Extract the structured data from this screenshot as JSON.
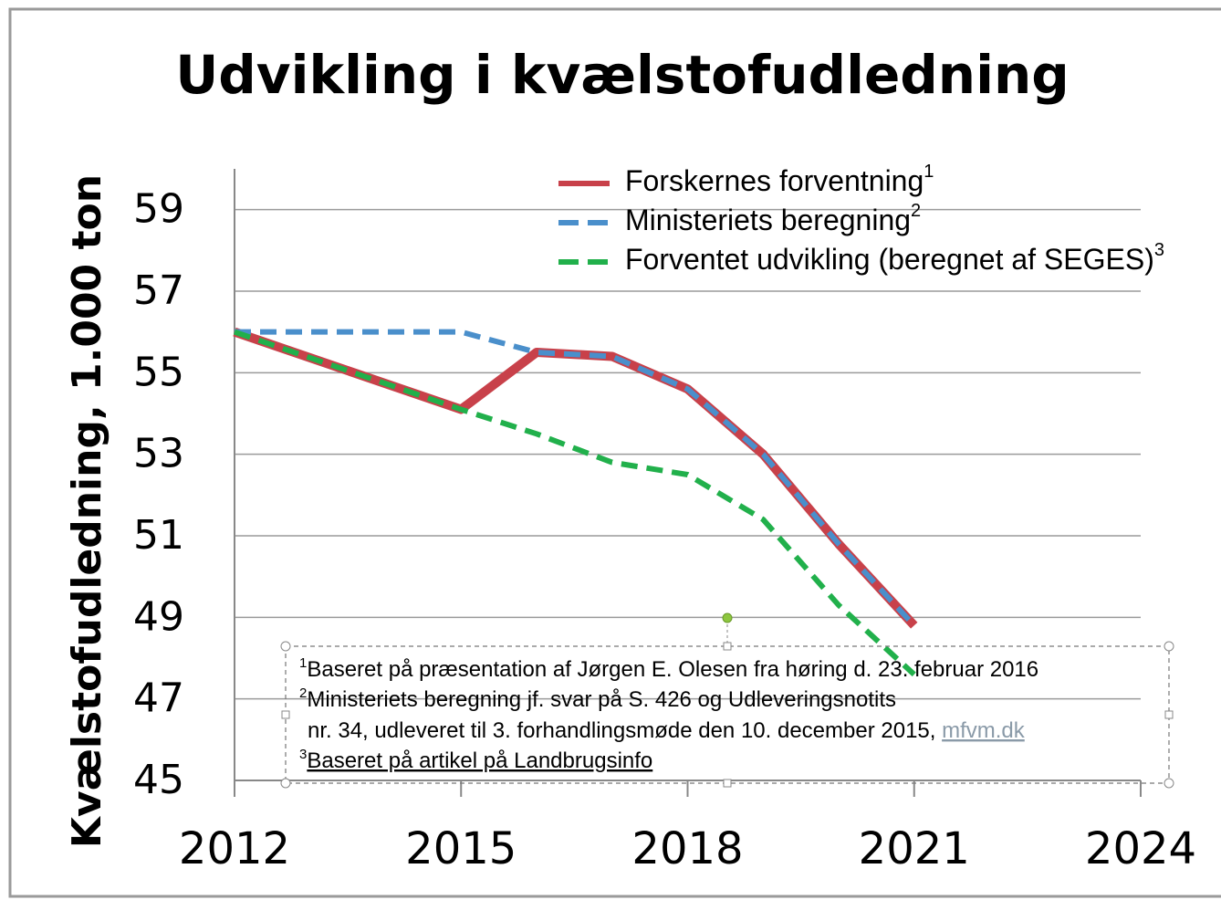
{
  "chart_data": {
    "type": "line",
    "title": "Udvikling i kvælstofudledning",
    "y_label": "Kvælstofudledning, 1.000 ton",
    "x": [
      2012,
      2015,
      2016,
      2017,
      2018,
      2019,
      2020,
      2021
    ],
    "xlim": [
      2012,
      2024
    ],
    "xticks": [
      2012,
      2015,
      2018,
      2021,
      2024
    ],
    "ylim": [
      45,
      60
    ],
    "yticks": [
      45,
      47,
      49,
      51,
      53,
      55,
      57,
      59
    ],
    "grid": true,
    "legend": "top-right",
    "series": [
      {
        "name": "Forskernes forventning",
        "note_ref": "1",
        "color": "#c8414a",
        "dash": false,
        "values": [
          56,
          54.1,
          55.5,
          55.4,
          54.6,
          53,
          50.8,
          48.8
        ]
      },
      {
        "name": "Ministeriets beregning",
        "note_ref": "2",
        "color": "#4a8fcb",
        "dash": true,
        "values": [
          56,
          56,
          55.5,
          55.4,
          54.6,
          53,
          50.8,
          48.8
        ]
      },
      {
        "name": "Forventet udvikling (beregnet af SEGES)",
        "note_ref": "3",
        "color": "#21b04b",
        "dash": true,
        "values": [
          56,
          54.1,
          53.5,
          52.8,
          52.5,
          51.4,
          49.3,
          47.6
        ]
      }
    ],
    "footnotes": [
      {
        "ref": "1",
        "text": "Baseret på præsentation af Jørgen E. Olesen fra høring d. 23. februar 2016"
      },
      {
        "ref": "2",
        "text": "Ministeriets beregning jf. svar på S. 426 og Udleveringsnotits",
        "continuation": "nr. 34, udleveret til 3. forhandlingsmøde  den 10. december 2015, ",
        "link": "mfvm.dk"
      },
      {
        "ref": "3",
        "text": "Baseret på artikel på Landbrugsinfo"
      }
    ]
  }
}
